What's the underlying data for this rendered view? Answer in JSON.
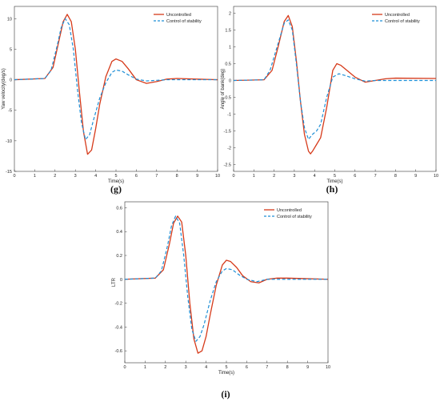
{
  "colors": {
    "uncontrolled": "#d63a1a",
    "control": "#1f8fd6",
    "axis": "#333333"
  },
  "chart_data": [
    {
      "id": "g",
      "type": "line",
      "caption": "(g)",
      "xlabel": "Time(s)",
      "ylabel": "Yaw velocity(deg/s)",
      "xlim": [
        0,
        10
      ],
      "ylim": [
        -15,
        12
      ],
      "xticks": [
        0,
        1,
        2,
        3,
        4,
        5,
        6,
        7,
        8,
        9,
        10
      ],
      "yticks": [
        -15,
        -10,
        -5,
        0,
        5,
        10
      ],
      "legend_position": "top-right",
      "series": [
        {
          "name": "Uncontrolled",
          "style": "solid",
          "x": [
            0,
            1.5,
            1.9,
            2.2,
            2.4,
            2.6,
            2.8,
            3.0,
            3.2,
            3.4,
            3.6,
            3.8,
            4.0,
            4.2,
            4.5,
            4.8,
            5.0,
            5.3,
            5.6,
            6.0,
            6.5,
            7.0,
            7.5,
            8.0,
            10
          ],
          "y": [
            0,
            0.2,
            2.0,
            6.5,
            9.5,
            10.7,
            9.5,
            5.0,
            -2.0,
            -8.5,
            -12.2,
            -11.5,
            -8.0,
            -4.0,
            0.5,
            3.0,
            3.4,
            3.0,
            1.8,
            0.0,
            -0.6,
            -0.3,
            0.1,
            0.2,
            0.0
          ]
        },
        {
          "name": "Control of stability",
          "style": "dashed",
          "x": [
            0,
            1.5,
            1.8,
            2.1,
            2.3,
            2.5,
            2.7,
            2.9,
            3.1,
            3.3,
            3.5,
            3.7,
            3.9,
            4.2,
            4.5,
            4.8,
            5.0,
            5.3,
            5.6,
            6.0,
            6.5,
            7.0,
            7.5,
            8.0,
            10
          ],
          "y": [
            0,
            0.2,
            1.5,
            5.5,
            8.5,
            10.0,
            9.0,
            5.0,
            -1.5,
            -7.0,
            -9.8,
            -9.0,
            -6.5,
            -3.0,
            -0.5,
            1.2,
            1.6,
            1.4,
            0.8,
            0.1,
            -0.2,
            -0.1,
            0.0,
            0.0,
            0.0
          ]
        }
      ]
    },
    {
      "id": "h",
      "type": "line",
      "caption": "(h)",
      "xlabel": "Time(s)",
      "ylabel": "Angle of bank(deg)",
      "xlim": [
        0,
        10
      ],
      "ylim": [
        -2.7,
        2.2
      ],
      "xticks": [
        0,
        1,
        2,
        3,
        4,
        5,
        6,
        7,
        8,
        9,
        10
      ],
      "yticks": [
        -2.5,
        -2,
        -1.5,
        -1,
        -0.5,
        0,
        0.5,
        1,
        1.5,
        2
      ],
      "legend_position": "top-right",
      "series": [
        {
          "name": "Uncontrolled",
          "style": "solid",
          "x": [
            0,
            1.5,
            1.9,
            2.2,
            2.5,
            2.7,
            2.9,
            3.1,
            3.3,
            3.5,
            3.7,
            3.8,
            3.9,
            4.1,
            4.3,
            4.6,
            4.9,
            5.1,
            5.3,
            5.6,
            6.0,
            6.5,
            7.0,
            7.5,
            8.0,
            10
          ],
          "y": [
            0,
            0.02,
            0.3,
            1.0,
            1.75,
            1.93,
            1.6,
            0.6,
            -0.6,
            -1.6,
            -2.1,
            -2.18,
            -2.1,
            -1.9,
            -1.7,
            -0.8,
            0.3,
            0.5,
            0.45,
            0.3,
            0.1,
            -0.05,
            0.0,
            0.05,
            0.07,
            0.06
          ]
        },
        {
          "name": "Control of stability",
          "style": "dashed",
          "x": [
            0,
            1.5,
            1.8,
            2.2,
            2.5,
            2.7,
            2.9,
            3.1,
            3.3,
            3.5,
            3.7,
            3.9,
            4.1,
            4.3,
            4.6,
            4.9,
            5.2,
            5.5,
            6.0,
            6.5,
            7.0,
            8.0,
            10
          ],
          "y": [
            0,
            0.02,
            0.3,
            1.1,
            1.7,
            1.8,
            1.5,
            0.5,
            -0.6,
            -1.4,
            -1.75,
            -1.6,
            -1.5,
            -1.3,
            -0.5,
            0.1,
            0.2,
            0.15,
            0.05,
            -0.02,
            0.0,
            0.0,
            0.0
          ]
        }
      ]
    },
    {
      "id": "i",
      "type": "line",
      "caption": "(i)",
      "xlabel": "Time(s)",
      "ylabel": "LTR",
      "xlim": [
        0,
        10
      ],
      "ylim": [
        -0.7,
        0.65
      ],
      "xticks": [
        0,
        1,
        2,
        3,
        4,
        5,
        6,
        7,
        8,
        9,
        10
      ],
      "yticks": [
        -0.6,
        -0.4,
        -0.2,
        0,
        0.2,
        0.4,
        0.6
      ],
      "legend_position": "top-right",
      "series": [
        {
          "name": "Uncontrolled",
          "style": "solid",
          "x": [
            0,
            1.5,
            1.9,
            2.2,
            2.4,
            2.6,
            2.8,
            3.0,
            3.2,
            3.4,
            3.6,
            3.8,
            4.0,
            4.2,
            4.5,
            4.8,
            5.0,
            5.2,
            5.5,
            5.8,
            6.2,
            6.6,
            7.0,
            7.5,
            8.0,
            10
          ],
          "y": [
            0,
            0.01,
            0.08,
            0.3,
            0.47,
            0.53,
            0.48,
            0.2,
            -0.2,
            -0.5,
            -0.62,
            -0.6,
            -0.48,
            -0.3,
            -0.05,
            0.12,
            0.16,
            0.15,
            0.1,
            0.03,
            -0.02,
            -0.03,
            0.0,
            0.01,
            0.01,
            0.0
          ]
        },
        {
          "name": "Control of stability",
          "style": "dashed",
          "x": [
            0,
            1.5,
            1.8,
            2.1,
            2.3,
            2.5,
            2.7,
            2.9,
            3.1,
            3.3,
            3.5,
            3.7,
            3.9,
            4.2,
            4.5,
            4.8,
            5.0,
            5.3,
            5.6,
            6.0,
            6.5,
            7.0,
            8.0,
            10
          ],
          "y": [
            0,
            0.01,
            0.07,
            0.28,
            0.45,
            0.53,
            0.47,
            0.2,
            -0.15,
            -0.42,
            -0.52,
            -0.48,
            -0.38,
            -0.18,
            -0.02,
            0.07,
            0.09,
            0.08,
            0.04,
            0.0,
            -0.02,
            0.0,
            0.0,
            0.0
          ]
        }
      ]
    }
  ]
}
